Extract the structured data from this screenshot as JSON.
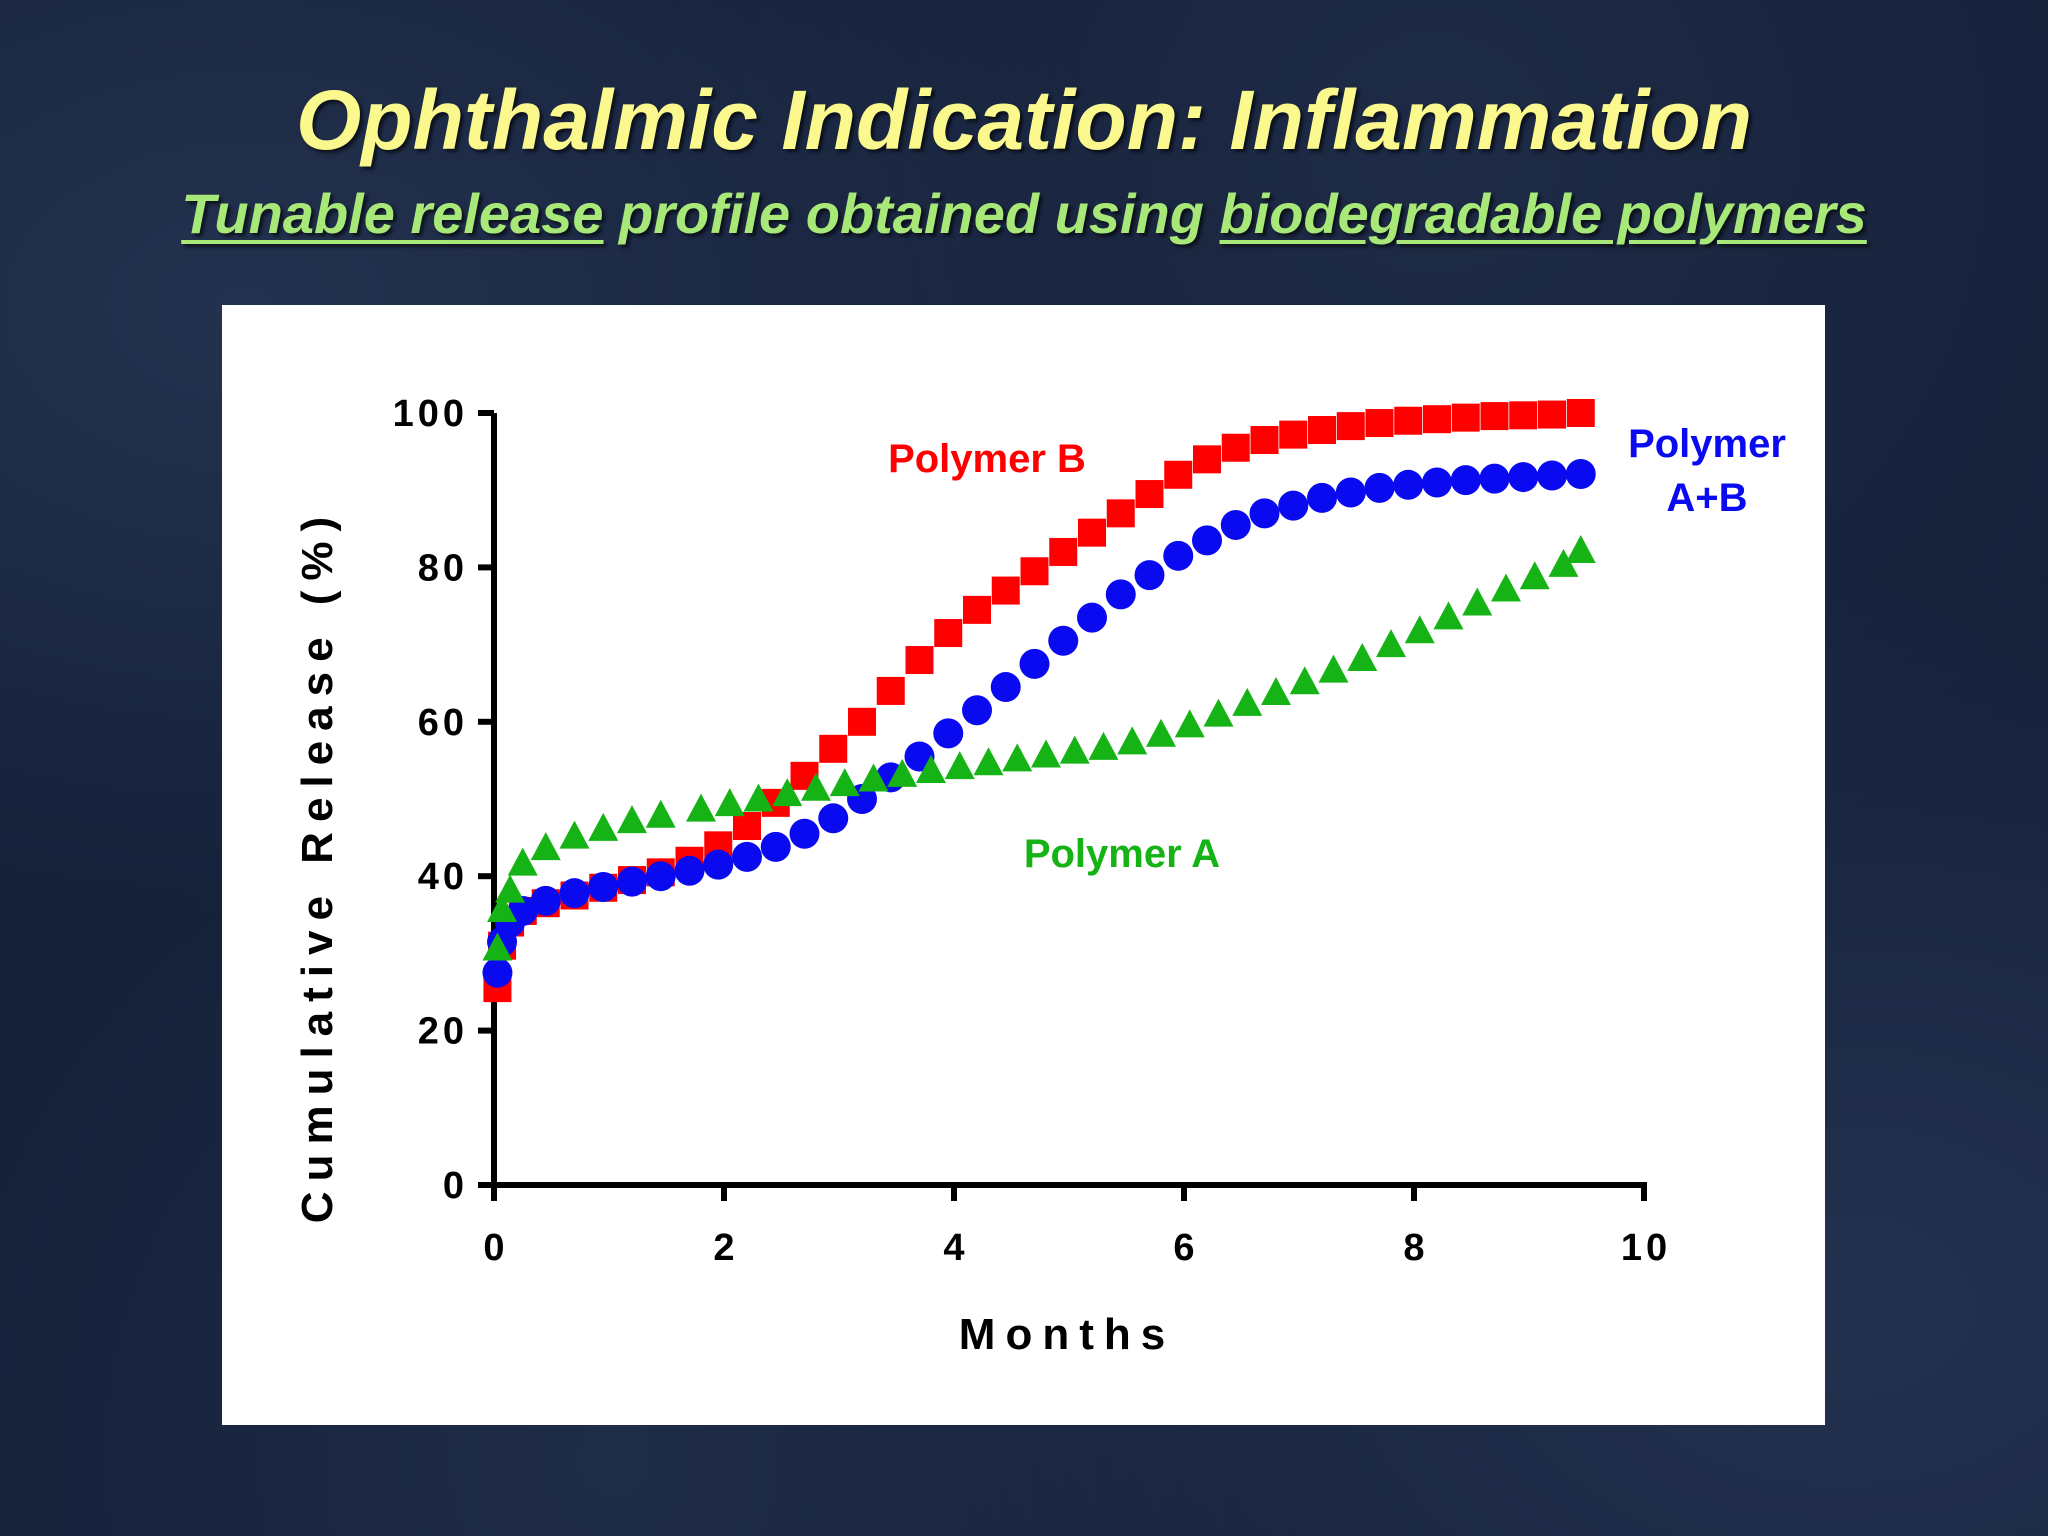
{
  "slide": {
    "title": "Ophthalmic Indication: Inflammation",
    "subtitle": {
      "part1": "Tunable release",
      "part2": " profile obtained using ",
      "part3": "biodegradable polymers"
    }
  },
  "colors": {
    "title": "#fbf98e",
    "subtitle": "#a8e878",
    "polymer_a": "#16b316",
    "polymer_b": "#ff0000",
    "polymer_ab": "#0a0af0"
  },
  "chart_data": {
    "type": "scatter",
    "title": "",
    "xlabel": "Months",
    "ylabel": "Cumulative Release (%)",
    "xlim": [
      0,
      10
    ],
    "ylim": [
      0,
      100
    ],
    "xticks": [
      0,
      2,
      4,
      6,
      8,
      10
    ],
    "yticks": [
      0,
      20,
      40,
      60,
      80,
      100
    ],
    "grid": false,
    "legend": "inline labels",
    "series": [
      {
        "name": "Polymer B",
        "label": "Polymer B",
        "marker": "square",
        "color": "#ff0000",
        "x": [
          0.03,
          0.07,
          0.14,
          0.25,
          0.45,
          0.7,
          0.95,
          1.2,
          1.45,
          1.7,
          1.95,
          2.2,
          2.45,
          2.7,
          2.95,
          3.2,
          3.45,
          3.7,
          3.95,
          4.2,
          4.45,
          4.7,
          4.95,
          5.2,
          5.45,
          5.7,
          5.95,
          6.2,
          6.45,
          6.7,
          6.95,
          7.2,
          7.45,
          7.7,
          7.95,
          8.2,
          8.45,
          8.7,
          8.95,
          9.2,
          9.45
        ],
        "y": [
          25.5,
          31,
          34,
          35.5,
          36.5,
          37.5,
          38.5,
          39.5,
          40.5,
          42,
          44,
          46.5,
          49.5,
          53,
          56.5,
          60,
          64,
          68,
          71.5,
          74.5,
          77,
          79.5,
          82,
          84.5,
          87,
          89.5,
          92,
          94,
          95.5,
          96.5,
          97.2,
          97.8,
          98.3,
          98.7,
          99,
          99.2,
          99.4,
          99.6,
          99.7,
          99.8,
          100
        ]
      },
      {
        "name": "Polymer A+B",
        "label": "Polymer A+B",
        "marker": "circle",
        "color": "#0a0af0",
        "x": [
          0.03,
          0.07,
          0.14,
          0.25,
          0.45,
          0.7,
          0.95,
          1.2,
          1.45,
          1.7,
          1.95,
          2.2,
          2.45,
          2.7,
          2.95,
          3.2,
          3.45,
          3.7,
          3.95,
          4.2,
          4.45,
          4.7,
          4.95,
          5.2,
          5.45,
          5.7,
          5.95,
          6.2,
          6.45,
          6.7,
          6.95,
          7.2,
          7.45,
          7.7,
          7.95,
          8.2,
          8.45,
          8.7,
          8.95,
          9.2,
          9.45
        ],
        "y": [
          27.5,
          31.5,
          34,
          35.5,
          36.8,
          37.8,
          38.6,
          39.3,
          40,
          40.7,
          41.5,
          42.5,
          43.8,
          45.5,
          47.5,
          50,
          52.8,
          55.5,
          58.5,
          61.5,
          64.5,
          67.5,
          70.5,
          73.5,
          76.5,
          79,
          81.5,
          83.5,
          85.5,
          87,
          88,
          89,
          89.7,
          90.3,
          90.7,
          91,
          91.3,
          91.5,
          91.7,
          91.9,
          92.1
        ]
      },
      {
        "name": "Polymer A",
        "label": "Polymer A",
        "marker": "triangle",
        "color": "#16b316",
        "x": [
          0.03,
          0.07,
          0.14,
          0.25,
          0.45,
          0.7,
          0.95,
          1.2,
          1.45,
          1.8,
          2.05,
          2.3,
          2.55,
          2.8,
          3.05,
          3.3,
          3.55,
          3.8,
          4.05,
          4.3,
          4.55,
          4.8,
          5.05,
          5.3,
          5.55,
          5.8,
          6.05,
          6.3,
          6.55,
          6.8,
          7.05,
          7.3,
          7.55,
          7.8,
          8.05,
          8.3,
          8.55,
          8.8,
          9.05,
          9.3,
          9.45
        ],
        "y": [
          30.5,
          35.5,
          38,
          41.5,
          43.5,
          45,
          46,
          47,
          47.7,
          48.5,
          49.2,
          49.8,
          50.5,
          51.2,
          51.8,
          52.4,
          53,
          53.5,
          54,
          54.5,
          55,
          55.5,
          56,
          56.5,
          57.2,
          58.2,
          59.4,
          60.8,
          62.2,
          63.6,
          65,
          66.5,
          68,
          69.8,
          71.6,
          73.4,
          75.2,
          77,
          78.6,
          80.2,
          82
        ]
      }
    ]
  }
}
